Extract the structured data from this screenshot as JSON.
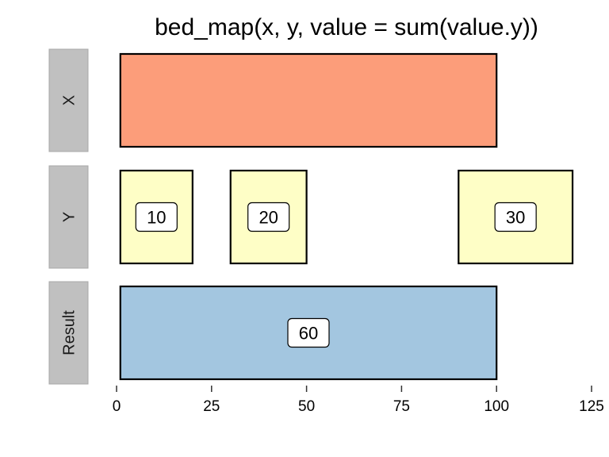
{
  "title": "bed_map(x, y, value = sum(value.y))",
  "chart_data": {
    "type": "interval-diagram",
    "xlim": [
      0,
      125
    ],
    "x_ticks": [
      0,
      25,
      50,
      75,
      100,
      125
    ],
    "x_tick_labels": [
      "0",
      "25",
      "50",
      "75",
      "100",
      "125"
    ],
    "tracks": [
      {
        "name": "X",
        "fill": "#fc9d7a",
        "intervals": [
          {
            "start": 1,
            "end": 100,
            "label": ""
          }
        ]
      },
      {
        "name": "Y",
        "fill": "#fefec6",
        "intervals": [
          {
            "start": 1,
            "end": 20,
            "label": "10"
          },
          {
            "start": 30,
            "end": 50,
            "label": "20"
          },
          {
            "start": 90,
            "end": 120,
            "label": "30"
          }
        ]
      },
      {
        "name": "Result",
        "fill": "#a3c6e0",
        "intervals": [
          {
            "start": 1,
            "end": 100,
            "label": "60"
          }
        ]
      }
    ]
  },
  "colors": {
    "strip_bg": "#c0c0c0",
    "outline": "#000000",
    "label_box": "#ffffff"
  }
}
